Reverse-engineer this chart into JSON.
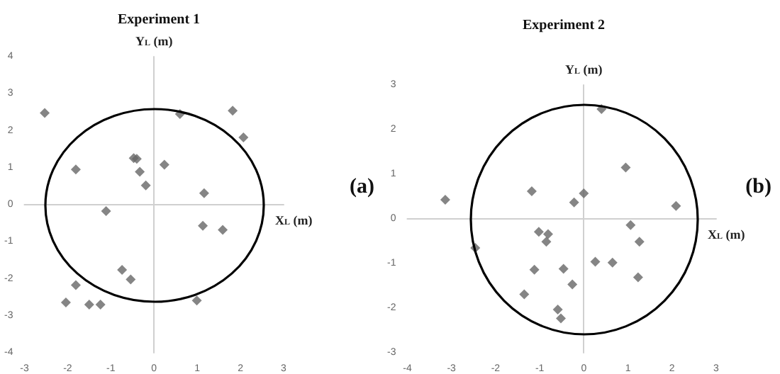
{
  "chart_data": [
    {
      "type": "scatter",
      "title": "Experiment 1",
      "xlabel": "X$_{L}$ (m)",
      "ylabel": "Y$_{L}$ (m)",
      "annotations": [
        "(a)"
      ],
      "xlim": [
        -3,
        3
      ],
      "xticks": [
        -3,
        -2,
        -1,
        0,
        1,
        2,
        3
      ],
      "ylim": [
        -4,
        4
      ],
      "yticks": [
        -4,
        -3,
        -2,
        -1,
        0,
        1,
        2,
        3,
        4
      ],
      "series": [
        {
          "type": "scatter",
          "marker": "diamond",
          "color": "#666666",
          "x": [
            -2.53,
            0.6,
            1.82,
            2.07,
            -0.47,
            -0.4,
            -1.81,
            -0.33,
            0.24,
            -0.19,
            1.16,
            -1.11,
            1.13,
            1.59,
            -0.74,
            -0.54,
            -1.81,
            -2.04,
            -1.5,
            -1.24,
            0.99
          ],
          "values": [
            2.48,
            2.45,
            2.54,
            1.82,
            1.26,
            1.24,
            0.95,
            0.89,
            1.08,
            0.52,
            0.31,
            -0.17,
            -0.57,
            -0.68,
            -1.76,
            -2.02,
            -2.17,
            -2.64,
            -2.7,
            -2.7,
            -2.59
          ]
        }
      ]
    },
    {
      "type": "scatter",
      "title": "Experiment 2",
      "xlabel": "X$_{L}$ (m)",
      "ylabel": "Y$_{L}$ (m)",
      "annotations": [
        "(b)"
      ],
      "xlim": [
        -4,
        3
      ],
      "xticks": [
        -4,
        -3,
        -2,
        -1,
        0,
        1,
        2,
        3
      ],
      "ylim": [
        -3,
        3
      ],
      "yticks": [
        -3,
        -2,
        -1,
        0,
        1,
        2,
        3
      ],
      "series": [
        {
          "type": "scatter",
          "marker": "diamond",
          "color": "#666666",
          "x": [
            0.4,
            0.95,
            -1.18,
            0,
            -0.22,
            -3.14,
            2.09,
            -1.02,
            -0.81,
            -0.85,
            1.06,
            1.26,
            -2.46,
            -1.12,
            -0.46,
            0.26,
            0.65,
            1.23,
            -0.26,
            -1.35,
            -0.59,
            -0.52
          ],
          "values": [
            2.46,
            1.15,
            0.62,
            0.57,
            0.37,
            0.43,
            0.29,
            -0.29,
            -0.34,
            -0.51,
            -0.14,
            -0.51,
            -0.65,
            -1.14,
            -1.12,
            -0.96,
            -0.98,
            -1.31,
            -1.47,
            -1.69,
            -2.03,
            -2.23
          ]
        }
      ]
    }
  ]
}
